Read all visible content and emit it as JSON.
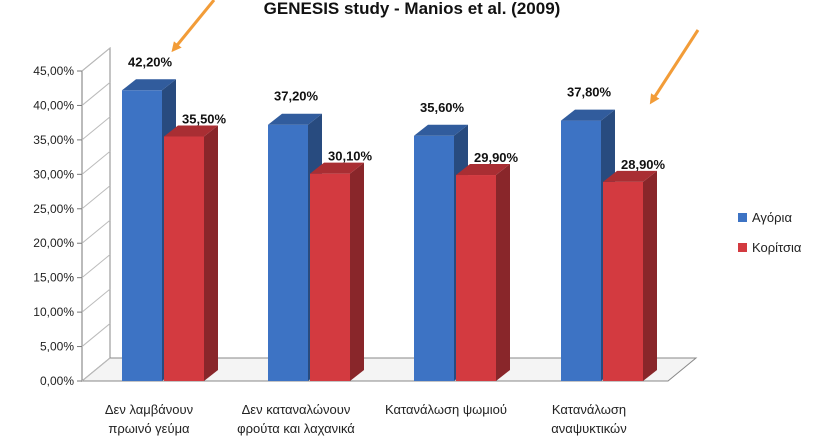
{
  "chart_data": {
    "type": "bar",
    "title": "GENESIS study - Manios et al. (2009)",
    "categories": [
      [
        "Δεν λαμβάνουν",
        "πρωινό γεύμα"
      ],
      [
        "Δεν καταναλώνουν",
        "φρούτα και λαχανικά"
      ],
      [
        "Κατανάλωση ψωμιού"
      ],
      [
        "Κατανάλωση",
        "αναψυκτικών"
      ]
    ],
    "series": [
      {
        "name": "Αγόρια",
        "values": [
          42.2,
          37.2,
          35.6,
          37.8
        ],
        "labels": [
          "42,20%",
          "37,20%",
          "35,60%",
          "37,80%"
        ],
        "color": "#3d73c4"
      },
      {
        "name": "Κορίτσια",
        "values": [
          35.5,
          30.1,
          29.9,
          28.9
        ],
        "labels": [
          "35,50%",
          "30,10%",
          "29,90%",
          "28,90%"
        ],
        "color": "#d33a40"
      }
    ],
    "yticks": [
      "0,00%",
      "5,00%",
      "10,00%",
      "15,00%",
      "20,00%",
      "25,00%",
      "30,00%",
      "35,00%",
      "40,00%",
      "45,00%"
    ],
    "ylim": [
      0,
      45
    ],
    "grid": false,
    "legend": "right",
    "annotations": [
      "orange arrow pointing to 42,20%",
      "orange arrow pointing to 37,80%"
    ],
    "arrow_color": "#f29c38"
  }
}
